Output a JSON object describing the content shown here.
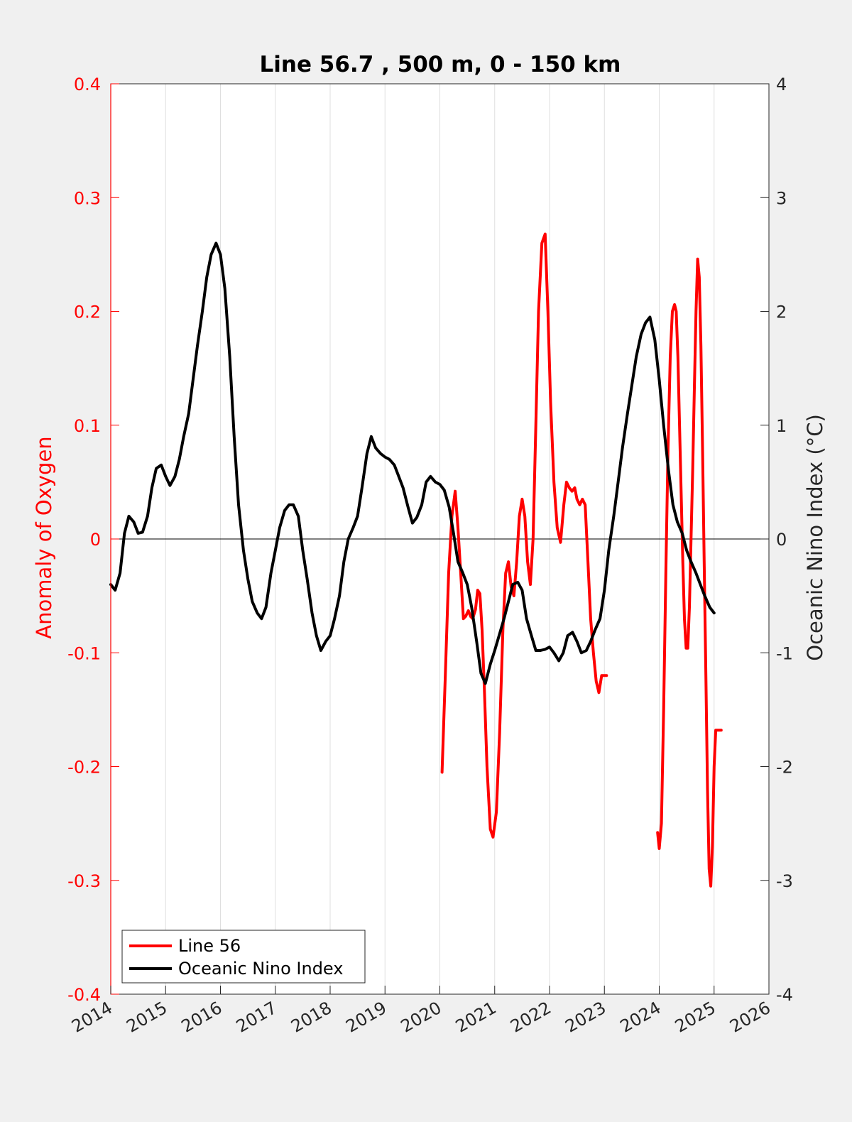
{
  "colors": {
    "figure_bg": "#f0f0f0",
    "axes_bg": "#ffffff",
    "line56": "#ff0000",
    "oni": "#000000",
    "left_axis": "#ff0000",
    "right_axis": "#262626",
    "grid": "#dfdfdf"
  },
  "chart_data": {
    "type": "line",
    "title": "Line 56.7 , 500 m, 0 - 150 km",
    "ylabel_left": "Anomaly of Oxygen",
    "ylabel_right": "Oceanic Nino Index (°C)",
    "xlim": [
      2014,
      2026
    ],
    "ylim_left": [
      -0.4,
      0.4
    ],
    "ylim_right": [
      -4,
      4
    ],
    "x_ticks": [
      2014,
      2015,
      2016,
      2017,
      2018,
      2019,
      2020,
      2021,
      2022,
      2023,
      2024,
      2025,
      2026
    ],
    "x_tick_labels": [
      "2014",
      "2015",
      "2016",
      "2017",
      "2018",
      "2019",
      "2020",
      "2021",
      "2022",
      "2023",
      "2024",
      "2025",
      "2026"
    ],
    "y_left_ticks": [
      -0.4,
      -0.3,
      -0.2,
      -0.1,
      0,
      0.1,
      0.2,
      0.3,
      0.4
    ],
    "y_left_tick_labels": [
      "-0.4",
      "-0.3",
      "-0.2",
      "-0.1",
      "0",
      "0.1",
      "0.2",
      "0.3",
      "0.4"
    ],
    "y_right_ticks": [
      -4,
      -3,
      -2,
      -1,
      0,
      1,
      2,
      3,
      4
    ],
    "y_right_tick_labels": [
      "-4",
      "-3",
      "-2",
      "-1",
      "0",
      "1",
      "2",
      "3",
      "4"
    ],
    "grid_x": true,
    "zero_line": true,
    "legend": {
      "location": "bottom-left",
      "entries": [
        "Line 56",
        "Oceanic Nino Index"
      ]
    },
    "series": [
      {
        "name": "Line 56",
        "axis": "left",
        "color": "#ff0000",
        "segments": [
          {
            "x": [
              2020.04,
              2020.1,
              2020.16,
              2020.22,
              2020.28,
              2020.33,
              2020.38,
              2020.43,
              2020.47,
              2020.52,
              2020.56,
              2020.6,
              2020.65,
              2020.69,
              2020.73,
              2020.77,
              2020.81,
              2020.86,
              2020.92,
              2020.97,
              2021.03,
              2021.09,
              2021.15,
              2021.2,
              2021.25,
              2021.3,
              2021.35,
              2021.4,
              2021.45,
              2021.5,
              2021.55,
              2021.6,
              2021.65,
              2021.7,
              2021.75,
              2021.8,
              2021.86,
              2021.92,
              2021.97,
              2022.02,
              2022.08,
              2022.14,
              2022.2,
              2022.26,
              2022.31,
              2022.36,
              2022.41,
              2022.46,
              2022.5,
              2022.55,
              2022.6,
              2022.65,
              2022.7,
              2022.75,
              2022.8,
              2022.85,
              2022.9,
              2022.95,
              2023.0,
              2023.04
            ],
            "y": [
              -0.205,
              -0.12,
              -0.03,
              0.02,
              0.042,
              0.01,
              -0.03,
              -0.07,
              -0.068,
              -0.063,
              -0.068,
              -0.07,
              -0.062,
              -0.045,
              -0.048,
              -0.08,
              -0.13,
              -0.2,
              -0.255,
              -0.262,
              -0.24,
              -0.17,
              -0.08,
              -0.03,
              -0.02,
              -0.042,
              -0.05,
              -0.02,
              0.02,
              0.035,
              0.02,
              -0.02,
              -0.04,
              0.0,
              0.1,
              0.2,
              0.26,
              0.268,
              0.2,
              0.12,
              0.05,
              0.01,
              -0.003,
              0.03,
              0.05,
              0.045,
              0.042,
              0.045,
              0.035,
              0.03,
              0.035,
              0.03,
              -0.02,
              -0.07,
              -0.1,
              -0.125,
              -0.135,
              -0.12,
              -0.12,
              -0.12
            ]
          },
          {
            "x": [
              2023.97,
              2024.0,
              2024.04,
              2024.08,
              2024.12,
              2024.16,
              2024.2,
              2024.24,
              2024.28,
              2024.31,
              2024.34,
              2024.37,
              2024.4,
              2024.43,
              2024.46,
              2024.49,
              2024.52,
              2024.55,
              2024.58,
              2024.61,
              2024.64,
              2024.67,
              2024.7,
              2024.73,
              2024.76,
              2024.79,
              2024.82,
              2024.85,
              2024.88,
              2024.91,
              2024.94,
              2024.97,
              2025.0,
              2025.03,
              2025.06,
              2025.09,
              2025.13
            ],
            "y": [
              -0.258,
              -0.272,
              -0.25,
              -0.15,
              -0.03,
              0.08,
              0.16,
              0.2,
              0.206,
              0.2,
              0.16,
              0.1,
              0.04,
              -0.02,
              -0.07,
              -0.096,
              -0.096,
              -0.06,
              0.0,
              0.06,
              0.13,
              0.2,
              0.246,
              0.23,
              0.17,
              0.08,
              -0.02,
              -0.12,
              -0.22,
              -0.29,
              -0.305,
              -0.27,
              -0.2,
              -0.168,
              -0.168,
              -0.168,
              -0.168
            ]
          }
        ]
      },
      {
        "name": "Oceanic Nino Index",
        "axis": "right",
        "color": "#000000",
        "x": [
          2014.0,
          2014.08,
          2014.17,
          2014.25,
          2014.33,
          2014.42,
          2014.5,
          2014.58,
          2014.67,
          2014.75,
          2014.83,
          2014.92,
          2015.0,
          2015.08,
          2015.17,
          2015.25,
          2015.33,
          2015.42,
          2015.5,
          2015.58,
          2015.67,
          2015.75,
          2015.83,
          2015.92,
          2016.0,
          2016.08,
          2016.17,
          2016.25,
          2016.33,
          2016.42,
          2016.5,
          2016.58,
          2016.67,
          2016.75,
          2016.83,
          2016.92,
          2017.0,
          2017.08,
          2017.17,
          2017.25,
          2017.33,
          2017.42,
          2017.5,
          2017.58,
          2017.67,
          2017.75,
          2017.83,
          2017.92,
          2018.0,
          2018.08,
          2018.17,
          2018.25,
          2018.33,
          2018.42,
          2018.5,
          2018.58,
          2018.67,
          2018.75,
          2018.83,
          2018.92,
          2019.0,
          2019.08,
          2019.17,
          2019.25,
          2019.33,
          2019.42,
          2019.5,
          2019.58,
          2019.67,
          2019.75,
          2019.83,
          2019.92,
          2020.0,
          2020.08,
          2020.17,
          2020.25,
          2020.33,
          2020.42,
          2020.5,
          2020.58,
          2020.67,
          2020.75,
          2020.83,
          2020.92,
          2021.0,
          2021.08,
          2021.17,
          2021.25,
          2021.33,
          2021.42,
          2021.5,
          2021.58,
          2021.67,
          2021.75,
          2021.83,
          2021.92,
          2022.0,
          2022.08,
          2022.17,
          2022.25,
          2022.33,
          2022.42,
          2022.5,
          2022.58,
          2022.67,
          2022.75,
          2022.83,
          2022.92,
          2023.0,
          2023.08,
          2023.17,
          2023.25,
          2023.33,
          2023.42,
          2023.5,
          2023.58,
          2023.67,
          2023.75,
          2023.83,
          2023.92,
          2024.0,
          2024.08,
          2024.17,
          2024.25,
          2024.33,
          2024.42,
          2024.5,
          2024.58,
          2024.67,
          2024.75,
          2024.83,
          2024.92,
          2025.0
        ],
        "y": [
          -0.4,
          -0.45,
          -0.3,
          0.05,
          0.2,
          0.15,
          0.05,
          0.06,
          0.2,
          0.45,
          0.62,
          0.65,
          0.55,
          0.47,
          0.55,
          0.7,
          0.9,
          1.1,
          1.4,
          1.7,
          2.0,
          2.3,
          2.5,
          2.6,
          2.5,
          2.2,
          1.6,
          0.9,
          0.3,
          -0.1,
          -0.35,
          -0.55,
          -0.65,
          -0.7,
          -0.6,
          -0.3,
          -0.1,
          0.1,
          0.25,
          0.3,
          0.3,
          0.2,
          -0.1,
          -0.35,
          -0.65,
          -0.85,
          -0.98,
          -0.9,
          -0.85,
          -0.7,
          -0.5,
          -0.2,
          0.0,
          0.1,
          0.2,
          0.45,
          0.75,
          0.9,
          0.8,
          0.75,
          0.72,
          0.7,
          0.65,
          0.55,
          0.45,
          0.28,
          0.14,
          0.19,
          0.3,
          0.5,
          0.55,
          0.5,
          0.48,
          0.43,
          0.28,
          0.05,
          -0.2,
          -0.3,
          -0.4,
          -0.6,
          -0.9,
          -1.18,
          -1.27,
          -1.1,
          -0.98,
          -0.85,
          -0.7,
          -0.55,
          -0.4,
          -0.38,
          -0.45,
          -0.7,
          -0.85,
          -0.98,
          -0.98,
          -0.97,
          -0.95,
          -1.0,
          -1.07,
          -1.0,
          -0.85,
          -0.82,
          -0.9,
          -1.0,
          -0.98,
          -0.9,
          -0.8,
          -0.7,
          -0.45,
          -0.1,
          0.2,
          0.5,
          0.8,
          1.1,
          1.35,
          1.6,
          1.8,
          1.9,
          1.95,
          1.75,
          1.4,
          1.0,
          0.6,
          0.3,
          0.15,
          0.05,
          -0.1,
          -0.2,
          -0.3,
          -0.4,
          -0.5,
          -0.6,
          -0.65
        ]
      }
    ]
  }
}
